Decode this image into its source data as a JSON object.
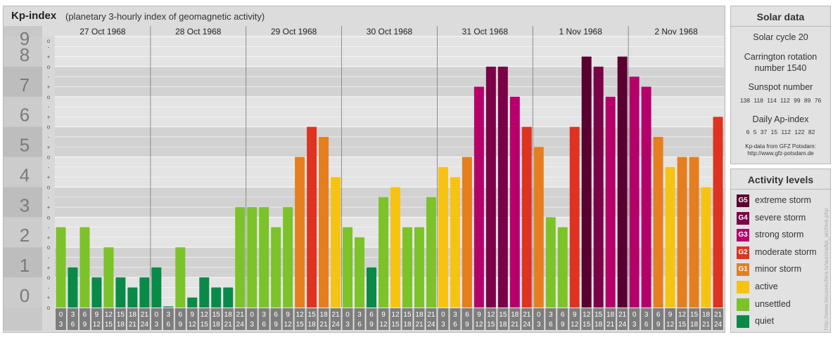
{
  "header": {
    "title": "Kp-index",
    "subtitle": "(planetary 3-hourly index of geomagnetic activity)"
  },
  "solar": {
    "heading": "Solar data",
    "cycle": "Solar cycle 20",
    "carrington_line1": "Carrington rotation",
    "carrington_line2": "number 1540",
    "sunspot_label": "Sunspot number",
    "sunspot_values": "138 118 114 112 99 89 76",
    "ap_label": "Daily Ap-index",
    "ap_values": "6 5 37 15 112 122 82",
    "source_line1": "Kp-data from GFZ Potsdam:",
    "source_line2": "http://www.gfz-potsdam.de"
  },
  "levels": {
    "heading": "Activity levels",
    "items": [
      {
        "badge": "G5",
        "label": "extreme storm",
        "color": "#5a0030"
      },
      {
        "badge": "G4",
        "label": "severe storm",
        "color": "#7a0048"
      },
      {
        "badge": "G3",
        "label": "strong storm",
        "color": "#b5006a"
      },
      {
        "badge": "G2",
        "label": "moderate storm",
        "color": "#dd3320"
      },
      {
        "badge": "G1",
        "label": "minor storm",
        "color": "#e57e1e"
      },
      {
        "badge": "",
        "label": "active",
        "color": "#f7c313"
      },
      {
        "badge": "",
        "label": "unsettled",
        "color": "#7cc229"
      },
      {
        "badge": "",
        "label": "quiet",
        "color": "#0a8a48"
      }
    ]
  },
  "watermark": "http://www.tieuseeufera.tv/aurora/kp_archive.php",
  "chart_data": {
    "type": "bar",
    "title": "Kp-index",
    "ylim": [
      0,
      9
    ],
    "y_ticks": [
      "0",
      "1",
      "2",
      "3",
      "4",
      "5",
      "6",
      "7",
      "8",
      "9"
    ],
    "sub_ticks": [
      "+",
      "-",
      "o"
    ],
    "days": [
      "27 Oct 1968",
      "28 Oct 1968",
      "29 Oct 1968",
      "30 Oct 1968",
      "31 Oct 1968",
      "1 Nov 1968",
      "2 Nov 1968"
    ],
    "hour_labels_top": [
      "0",
      "3",
      "6",
      "9",
      "12",
      "15",
      "18",
      "21"
    ],
    "hour_labels_bottom": [
      "3",
      "6",
      "9",
      "12",
      "15",
      "18",
      "21",
      "24"
    ],
    "colors": {
      "quiet": "#0a8a48",
      "unsettled": "#7cc229",
      "active": "#f7c313",
      "G1": "#e57e1e",
      "G2": "#dd3320",
      "G3": "#b5006a",
      "G4": "#7a0048",
      "G5": "#5a0030"
    },
    "values": [
      2.667,
      1.333,
      2.667,
      1.0,
      2.0,
      1.0,
      0.667,
      1.0,
      1.333,
      0.0,
      2.0,
      0.333,
      1.0,
      0.667,
      0.667,
      3.333,
      3.333,
      3.333,
      2.667,
      3.333,
      5.0,
      6.0,
      5.667,
      4.333,
      2.667,
      2.333,
      1.333,
      3.667,
      4.0,
      2.667,
      2.667,
      3.667,
      4.667,
      4.333,
      5.0,
      7.333,
      8.0,
      8.0,
      7.0,
      6.0,
      5.333,
      3.0,
      2.667,
      6.0,
      8.333,
      8.0,
      7.0,
      8.333,
      7.667,
      7.333,
      5.667,
      4.667,
      5.0,
      5.0,
      4.0,
      6.333
    ]
  }
}
